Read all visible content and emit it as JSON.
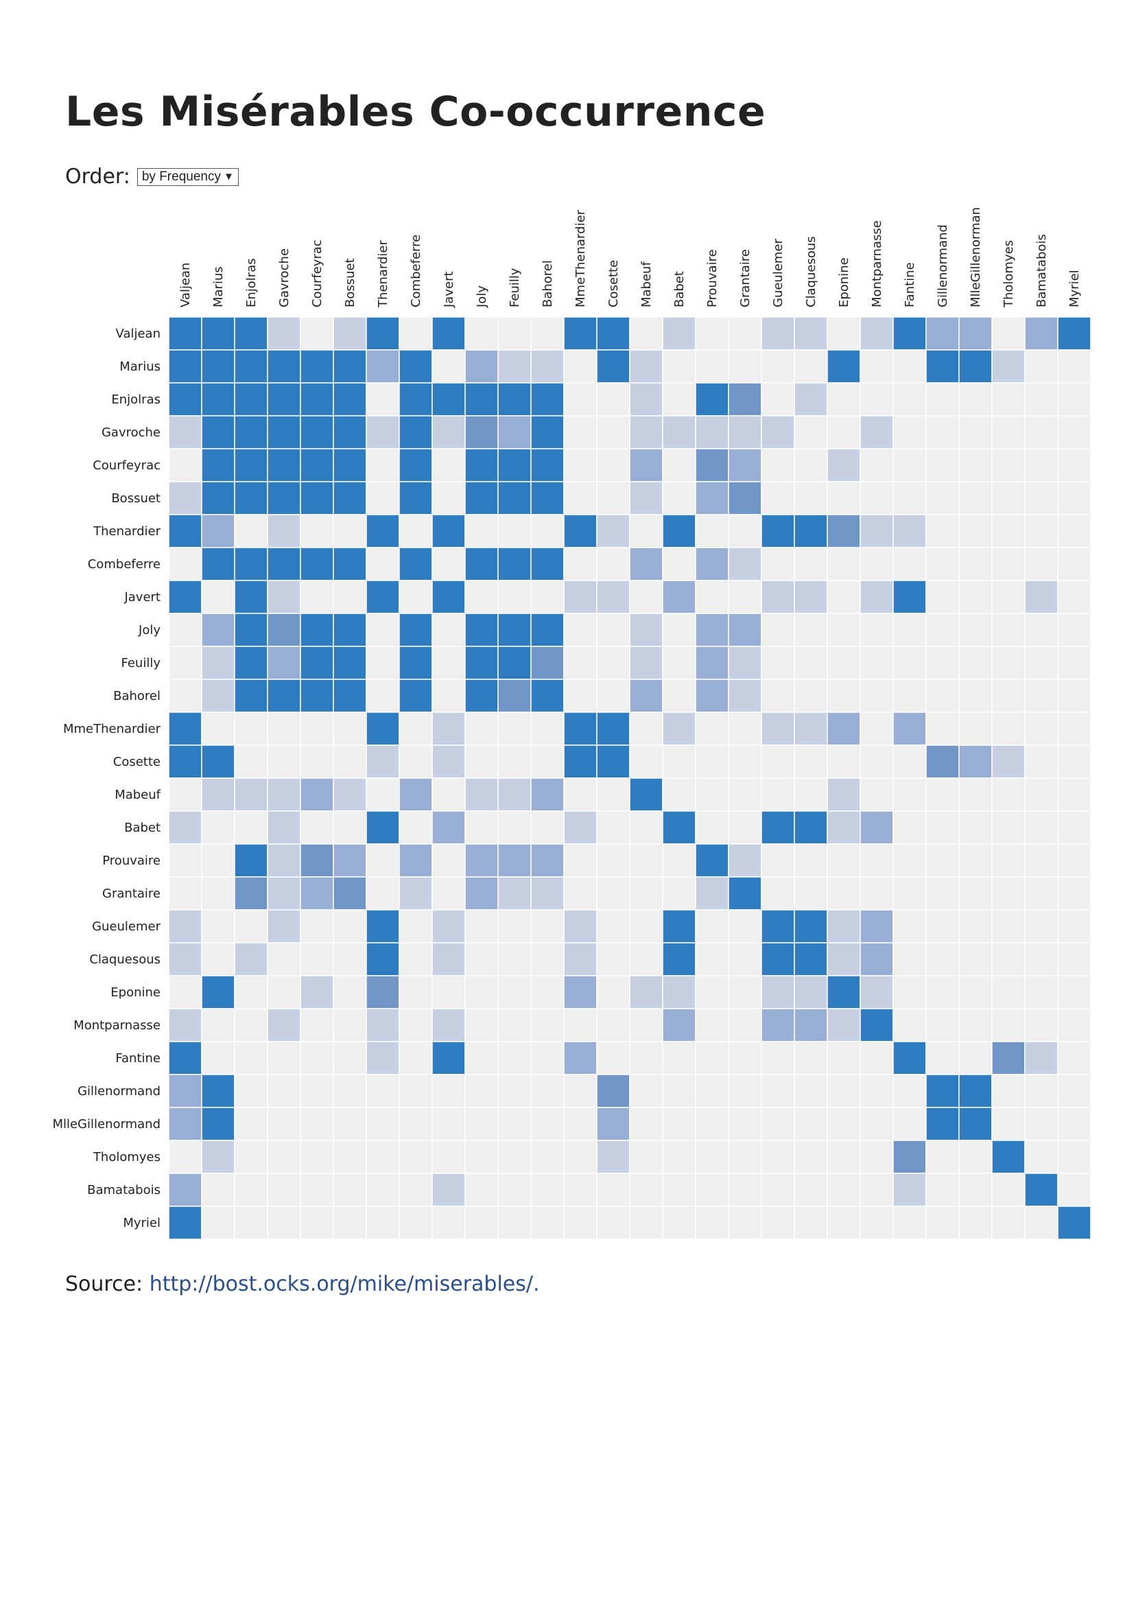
{
  "title": "Les Misérables Co-occurrence",
  "order": {
    "label": "Order:",
    "selected": "by Frequency",
    "arrow": "▼"
  },
  "source": {
    "label": "Source:",
    "link_text": "http://bost.ocks.org/mike/miserables/."
  },
  "colors": {
    "strong": "#2e7bbf",
    "medium": "#6f96c6",
    "light": "#99aed4",
    "faint": "#c6d0e2",
    "empty": "#efefef"
  },
  "chart_data": {
    "type": "heatmap",
    "title": "Les Misérables Co-occurrence",
    "x_labels": [
      "Valjean",
      "Marius",
      "Enjolras",
      "Gavroche",
      "Courfeyrac",
      "Bossuet",
      "Thenardier",
      "Combeferre",
      "Javert",
      "Joly",
      "Feuilly",
      "Bahorel",
      "MmeThenardier",
      "Cosette",
      "Mabeuf",
      "Babet",
      "Prouvaire",
      "Grantaire",
      "Gueulemer",
      "Claquesous",
      "Eponine",
      "Montparnasse",
      "Fantine",
      "Gillenormand",
      "MlleGillenorman",
      "Tholomyes",
      "Bamatabois",
      "Myriel"
    ],
    "y_labels": [
      "Valjean",
      "Marius",
      "Enjolras",
      "Gavroche",
      "Courfeyrac",
      "Bossuet",
      "Thenardier",
      "Combeferre",
      "Javert",
      "Joly",
      "Feuilly",
      "Bahorel",
      "MmeThenardier",
      "Cosette",
      "Mabeuf",
      "Babet",
      "Prouvaire",
      "Grantaire",
      "Gueulemer",
      "Claquesous",
      "Eponine",
      "Montparnasse",
      "Fantine",
      "Gillenormand",
      "MlleGillenormand",
      "Tholomyes",
      "Bamatabois",
      "Myriel"
    ],
    "value_scale": "0 = no co-occurrence, 1 = faint, 2 = light, 3 = medium, 4 = strong",
    "matrix": [
      [
        4,
        4,
        4,
        1,
        0,
        1,
        4,
        0,
        4,
        0,
        0,
        0,
        4,
        4,
        0,
        1,
        0,
        0,
        1,
        1,
        0,
        1,
        4,
        2,
        2,
        0,
        2,
        4
      ],
      [
        4,
        4,
        4,
        4,
        4,
        4,
        2,
        4,
        0,
        2,
        1,
        1,
        0,
        4,
        1,
        0,
        0,
        0,
        0,
        0,
        4,
        0,
        0,
        4,
        4,
        1,
        0,
        0
      ],
      [
        4,
        4,
        4,
        4,
        4,
        4,
        0,
        4,
        4,
        4,
        4,
        4,
        0,
        0,
        1,
        0,
        4,
        3,
        0,
        1,
        0,
        0,
        0,
        0,
        0,
        0,
        0,
        0
      ],
      [
        1,
        4,
        4,
        4,
        4,
        4,
        1,
        4,
        1,
        3,
        2,
        4,
        0,
        0,
        1,
        1,
        1,
        1,
        1,
        0,
        0,
        1,
        0,
        0,
        0,
        0,
        0,
        0
      ],
      [
        0,
        4,
        4,
        4,
        4,
        4,
        0,
        4,
        0,
        4,
        4,
        4,
        0,
        0,
        2,
        0,
        3,
        2,
        0,
        0,
        1,
        0,
        0,
        0,
        0,
        0,
        0,
        0
      ],
      [
        1,
        4,
        4,
        4,
        4,
        4,
        0,
        4,
        0,
        4,
        4,
        4,
        0,
        0,
        1,
        0,
        2,
        3,
        0,
        0,
        0,
        0,
        0,
        0,
        0,
        0,
        0,
        0
      ],
      [
        4,
        2,
        0,
        1,
        0,
        0,
        4,
        0,
        4,
        0,
        0,
        0,
        4,
        1,
        0,
        4,
        0,
        0,
        4,
        4,
        3,
        1,
        1,
        0,
        0,
        0,
        0,
        0
      ],
      [
        0,
        4,
        4,
        4,
        4,
        4,
        0,
        4,
        0,
        4,
        4,
        4,
        0,
        0,
        2,
        0,
        2,
        1,
        0,
        0,
        0,
        0,
        0,
        0,
        0,
        0,
        0,
        0
      ],
      [
        4,
        0,
        4,
        1,
        0,
        0,
        4,
        0,
        4,
        0,
        0,
        0,
        1,
        1,
        0,
        2,
        0,
        0,
        1,
        1,
        0,
        1,
        4,
        0,
        0,
        0,
        1,
        0
      ],
      [
        0,
        2,
        4,
        3,
        4,
        4,
        0,
        4,
        0,
        4,
        4,
        4,
        0,
        0,
        1,
        0,
        2,
        2,
        0,
        0,
        0,
        0,
        0,
        0,
        0,
        0,
        0,
        0
      ],
      [
        0,
        1,
        4,
        2,
        4,
        4,
        0,
        4,
        0,
        4,
        4,
        3,
        0,
        0,
        1,
        0,
        2,
        1,
        0,
        0,
        0,
        0,
        0,
        0,
        0,
        0,
        0,
        0
      ],
      [
        0,
        1,
        4,
        4,
        4,
        4,
        0,
        4,
        0,
        4,
        3,
        4,
        0,
        0,
        2,
        0,
        2,
        1,
        0,
        0,
        0,
        0,
        0,
        0,
        0,
        0,
        0,
        0
      ],
      [
        4,
        0,
        0,
        0,
        0,
        0,
        4,
        0,
        1,
        0,
        0,
        0,
        4,
        4,
        0,
        1,
        0,
        0,
        1,
        1,
        2,
        0,
        2,
        0,
        0,
        0,
        0,
        0
      ],
      [
        4,
        4,
        0,
        0,
        0,
        0,
        1,
        0,
        1,
        0,
        0,
        0,
        4,
        4,
        0,
        0,
        0,
        0,
        0,
        0,
        0,
        0,
        0,
        3,
        2,
        1,
        0,
        0
      ],
      [
        0,
        1,
        1,
        1,
        2,
        1,
        0,
        2,
        0,
        1,
        1,
        2,
        0,
        0,
        4,
        0,
        0,
        0,
        0,
        0,
        1,
        0,
        0,
        0,
        0,
        0,
        0,
        0
      ],
      [
        1,
        0,
        0,
        1,
        0,
        0,
        4,
        0,
        2,
        0,
        0,
        0,
        1,
        0,
        0,
        4,
        0,
        0,
        4,
        4,
        1,
        2,
        0,
        0,
        0,
        0,
        0,
        0
      ],
      [
        0,
        0,
        4,
        1,
        3,
        2,
        0,
        2,
        0,
        2,
        2,
        2,
        0,
        0,
        0,
        0,
        4,
        1,
        0,
        0,
        0,
        0,
        0,
        0,
        0,
        0,
        0,
        0
      ],
      [
        0,
        0,
        3,
        1,
        2,
        3,
        0,
        1,
        0,
        2,
        1,
        1,
        0,
        0,
        0,
        0,
        1,
        4,
        0,
        0,
        0,
        0,
        0,
        0,
        0,
        0,
        0,
        0
      ],
      [
        1,
        0,
        0,
        1,
        0,
        0,
        4,
        0,
        1,
        0,
        0,
        0,
        1,
        0,
        0,
        4,
        0,
        0,
        4,
        4,
        1,
        2,
        0,
        0,
        0,
        0,
        0,
        0
      ],
      [
        1,
        0,
        1,
        0,
        0,
        0,
        4,
        0,
        1,
        0,
        0,
        0,
        1,
        0,
        0,
        4,
        0,
        0,
        4,
        4,
        1,
        2,
        0,
        0,
        0,
        0,
        0,
        0
      ],
      [
        0,
        4,
        0,
        0,
        1,
        0,
        3,
        0,
        0,
        0,
        0,
        0,
        2,
        0,
        1,
        1,
        0,
        0,
        1,
        1,
        4,
        1,
        0,
        0,
        0,
        0,
        0,
        0
      ],
      [
        1,
        0,
        0,
        1,
        0,
        0,
        1,
        0,
        1,
        0,
        0,
        0,
        0,
        0,
        0,
        2,
        0,
        0,
        2,
        2,
        1,
        4,
        0,
        0,
        0,
        0,
        0,
        0
      ],
      [
        4,
        0,
        0,
        0,
        0,
        0,
        1,
        0,
        4,
        0,
        0,
        0,
        2,
        0,
        0,
        0,
        0,
        0,
        0,
        0,
        0,
        0,
        4,
        0,
        0,
        3,
        1,
        0
      ],
      [
        2,
        4,
        0,
        0,
        0,
        0,
        0,
        0,
        0,
        0,
        0,
        0,
        0,
        3,
        0,
        0,
        0,
        0,
        0,
        0,
        0,
        0,
        0,
        4,
        4,
        0,
        0,
        0
      ],
      [
        2,
        4,
        0,
        0,
        0,
        0,
        0,
        0,
        0,
        0,
        0,
        0,
        0,
        2,
        0,
        0,
        0,
        0,
        0,
        0,
        0,
        0,
        0,
        4,
        4,
        0,
        0,
        0
      ],
      [
        0,
        1,
        0,
        0,
        0,
        0,
        0,
        0,
        0,
        0,
        0,
        0,
        0,
        1,
        0,
        0,
        0,
        0,
        0,
        0,
        0,
        0,
        3,
        0,
        0,
        4,
        0,
        0
      ],
      [
        2,
        0,
        0,
        0,
        0,
        0,
        0,
        0,
        1,
        0,
        0,
        0,
        0,
        0,
        0,
        0,
        0,
        0,
        0,
        0,
        0,
        0,
        1,
        0,
        0,
        0,
        4,
        0
      ],
      [
        4,
        0,
        0,
        0,
        0,
        0,
        0,
        0,
        0,
        0,
        0,
        0,
        0,
        0,
        0,
        0,
        0,
        0,
        0,
        0,
        0,
        0,
        0,
        0,
        0,
        0,
        0,
        4
      ]
    ]
  }
}
